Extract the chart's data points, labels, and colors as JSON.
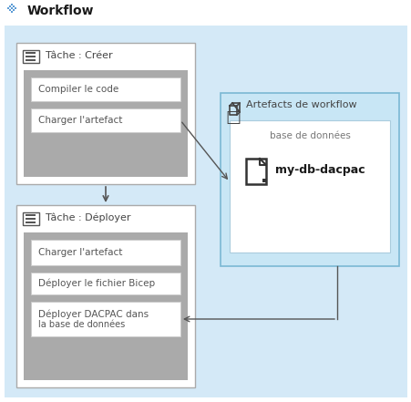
{
  "title": "Workflow",
  "bg_outer": "#ffffff",
  "bg_main": "#d4e9f7",
  "bg_task": "#ffffff",
  "bg_steps_area": "#9e9e9e",
  "bg_step_box": "#ffffff",
  "bg_step_border": "#cccccc",
  "bg_artifact_box": "#c8e6f5",
  "bg_artifact_inner": "#ffffff",
  "bg_artifact_border": "#7ab8d4",
  "task1_title": "Tâche : Créer",
  "task2_title": "Tâche : Déployer",
  "task1_steps": [
    "Compiler le code",
    "Charger l'artefact"
  ],
  "task2_steps": [
    "Charger l'artefact",
    "Déployer le fichier Bicep",
    "Déployer DACPAC dans",
    "la base de données"
  ],
  "artifact_title": "Artefacts de workflow",
  "artifact_label": "base de données",
  "artifact_name": "my-db-dacpac",
  "title_color": "#1a1a1a",
  "task_title_color": "#333333",
  "step_text_color": "#555555",
  "arrow_color": "#555555"
}
